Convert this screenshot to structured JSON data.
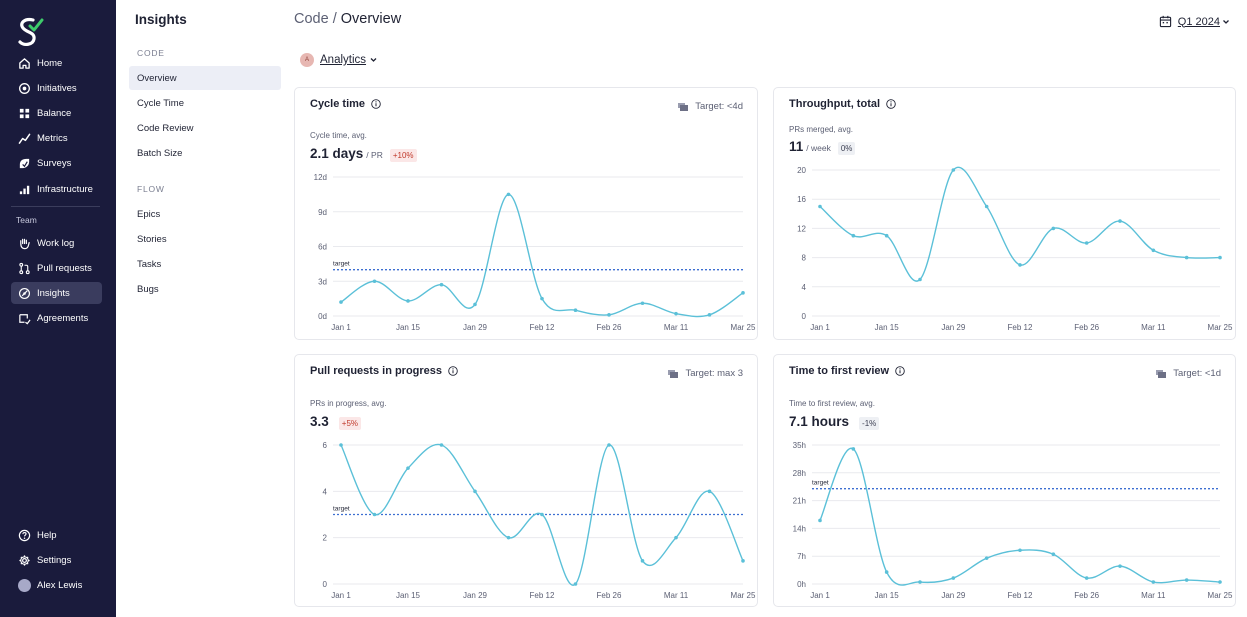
{
  "nav": {
    "primary": [
      {
        "label": "Home",
        "icon": "home-icon"
      },
      {
        "label": "Initiatives",
        "icon": "target-icon"
      },
      {
        "label": "Balance",
        "icon": "grid-icon"
      },
      {
        "label": "Metrics",
        "icon": "trend-icon"
      },
      {
        "label": "Surveys",
        "icon": "survey-icon"
      },
      {
        "label": "Infrastructure",
        "icon": "infrastructure-icon"
      }
    ],
    "team_label": "Team",
    "team_items": [
      {
        "label": "Work log",
        "icon": "hand-icon"
      },
      {
        "label": "Pull requests",
        "icon": "pull-request-icon"
      },
      {
        "label": "Insights",
        "icon": "insights-icon",
        "active": true
      },
      {
        "label": "Agreements",
        "icon": "agreements-icon"
      }
    ],
    "bottom": [
      {
        "label": "Help",
        "icon": "help-icon"
      },
      {
        "label": "Settings",
        "icon": "gear-icon"
      },
      {
        "label": "Alex Lewis",
        "icon": "avatar"
      }
    ]
  },
  "subnav": {
    "title": "Insights",
    "sections": [
      {
        "label": "CODE",
        "items": [
          "Overview",
          "Cycle Time",
          "Code Review",
          "Batch Size"
        ]
      },
      {
        "label": "FLOW",
        "items": [
          "Epics",
          "Stories",
          "Tasks",
          "Bugs"
        ]
      }
    ],
    "active": "Overview"
  },
  "header": {
    "breadcrumb_parent": "Code",
    "separator": "/",
    "breadcrumb_current": "Overview",
    "period": "Q1 2024",
    "team_initial": "A",
    "team_name": "Analytics"
  },
  "colors": {
    "line": "#5bc0d8",
    "target": "#3d6fd1",
    "grid": "#e9eaee",
    "nav_bg": "#1a1b3c"
  },
  "cards": [
    {
      "title": "Cycle time",
      "target": "Target: <4d",
      "metric_label": "Cycle time, avg.",
      "metric_value": "2.1 days",
      "metric_unit": "/ PR",
      "delta": "+10%",
      "delta_kind": "neg"
    },
    {
      "title": "Throughput, total",
      "target": "",
      "metric_label": "PRs merged, avg.",
      "metric_value": "11",
      "metric_unit": "/ week",
      "delta": "0%",
      "delta_kind": "neu"
    },
    {
      "title": "Pull requests in progress",
      "target": "Target: max 3",
      "metric_label": "PRs in progress, avg.",
      "metric_value": "3.3",
      "metric_unit": "",
      "delta": "+5%",
      "delta_kind": "neg"
    },
    {
      "title": "Time to first review",
      "target": "Target: <1d",
      "metric_label": "Time to first review, avg.",
      "metric_value": "7.1 hours",
      "metric_unit": "",
      "delta": "-1%",
      "delta_kind": "neu"
    }
  ],
  "chart_data": [
    {
      "type": "line",
      "title": "Cycle time",
      "x": [
        "Jan 1",
        "Jan 8",
        "Jan 15",
        "Jan 22",
        "Jan 29",
        "Feb 5",
        "Feb 12",
        "Feb 19",
        "Feb 26",
        "Mar 4",
        "Mar 11",
        "Mar 18",
        "Mar 25"
      ],
      "x_ticks": [
        "Jan 1",
        "Jan 15",
        "Jan 29",
        "Feb 12",
        "Feb 26",
        "Mar 11",
        "Mar 25"
      ],
      "values": [
        1.2,
        3.0,
        1.3,
        2.7,
        1.0,
        10.5,
        1.5,
        0.5,
        0.1,
        1.1,
        0.2,
        0.1,
        2.0
      ],
      "y_ticks": [
        "0d",
        "3d",
        "6d",
        "9d",
        "12d"
      ],
      "ylim": [
        0,
        12
      ],
      "target": 4,
      "target_label": "target"
    },
    {
      "type": "line",
      "title": "Throughput, total",
      "x": [
        "Jan 1",
        "Jan 8",
        "Jan 15",
        "Jan 22",
        "Jan 29",
        "Feb 5",
        "Feb 12",
        "Feb 19",
        "Feb 26",
        "Mar 4",
        "Mar 11",
        "Mar 18",
        "Mar 25"
      ],
      "x_ticks": [
        "Jan 1",
        "Jan 15",
        "Jan 29",
        "Feb 12",
        "Feb 26",
        "Mar 11",
        "Mar 25"
      ],
      "values": [
        15,
        11,
        11,
        5,
        20,
        15,
        7,
        12,
        10,
        13,
        9,
        8,
        8
      ],
      "y_ticks": [
        "0",
        "4",
        "8",
        "12",
        "16",
        "20"
      ],
      "ylim": [
        0,
        20
      ],
      "target": null,
      "target_label": ""
    },
    {
      "type": "line",
      "title": "Pull requests in progress",
      "x": [
        "Jan 1",
        "Jan 8",
        "Jan 15",
        "Jan 22",
        "Jan 29",
        "Feb 5",
        "Feb 12",
        "Feb 19",
        "Feb 26",
        "Mar 4",
        "Mar 11",
        "Mar 18",
        "Mar 25"
      ],
      "x_ticks": [
        "Jan 1",
        "Jan 15",
        "Jan 29",
        "Feb 12",
        "Feb 26",
        "Mar 11",
        "Mar 25"
      ],
      "values": [
        6,
        3,
        5,
        6,
        4,
        2,
        3,
        0,
        6,
        1,
        2,
        4,
        1
      ],
      "y_ticks": [
        "0",
        "2",
        "4",
        "6"
      ],
      "ylim": [
        0,
        6
      ],
      "target": 3,
      "target_label": "target"
    },
    {
      "type": "line",
      "title": "Time to first review",
      "x": [
        "Jan 1",
        "Jan 8",
        "Jan 15",
        "Jan 22",
        "Jan 29",
        "Feb 5",
        "Feb 12",
        "Feb 19",
        "Feb 26",
        "Mar 4",
        "Mar 11",
        "Mar 18",
        "Mar 25"
      ],
      "x_ticks": [
        "Jan 1",
        "Jan 15",
        "Jan 29",
        "Feb 12",
        "Feb 26",
        "Mar 11",
        "Mar 25"
      ],
      "values": [
        16,
        34,
        3,
        0.5,
        1.5,
        6.5,
        8.5,
        7.5,
        1.5,
        4.5,
        0.5,
        1,
        0.5
      ],
      "y_ticks": [
        "0h",
        "7h",
        "14h",
        "21h",
        "28h",
        "35h"
      ],
      "ylim": [
        0,
        35
      ],
      "target": 24,
      "target_label": "target"
    }
  ]
}
